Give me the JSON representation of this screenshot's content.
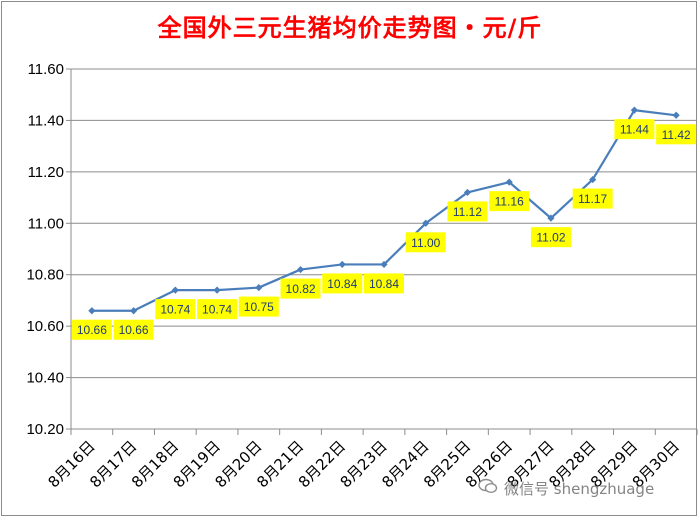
{
  "chart_data": {
    "type": "line",
    "title": "全国外三元生猪均价走势图・元/斤",
    "categories": [
      "8月16日",
      "8月17日",
      "8月18日",
      "8月19日",
      "8月20日",
      "8月21日",
      "8月22日",
      "8月23日",
      "8月24日",
      "8月25日",
      "8月26日",
      "8月27日",
      "8月28日",
      "8月29日",
      "8月30日"
    ],
    "values": [
      10.66,
      10.66,
      10.74,
      10.74,
      10.75,
      10.82,
      10.84,
      10.84,
      11.0,
      11.12,
      11.16,
      11.02,
      11.17,
      11.44,
      11.42
    ],
    "data_labels": [
      "10.66",
      "10.66",
      "10.74",
      "10.74",
      "10.75",
      "10.82",
      "10.84",
      "10.84",
      "11.00",
      "11.12",
      "11.16",
      "11.02",
      "11.17",
      "11.44",
      "11.42"
    ],
    "yticks": [
      "10.20",
      "10.40",
      "10.60",
      "10.80",
      "11.00",
      "11.20",
      "11.40",
      "11.60"
    ],
    "ylim": [
      10.2,
      11.6
    ],
    "grid": true,
    "legend": "none",
    "colors": {
      "line": "#4a7ebb",
      "label_bg": "#ffff00",
      "title": "#ff0000"
    }
  },
  "watermark": {
    "text": "微信号 shengzhuage"
  }
}
